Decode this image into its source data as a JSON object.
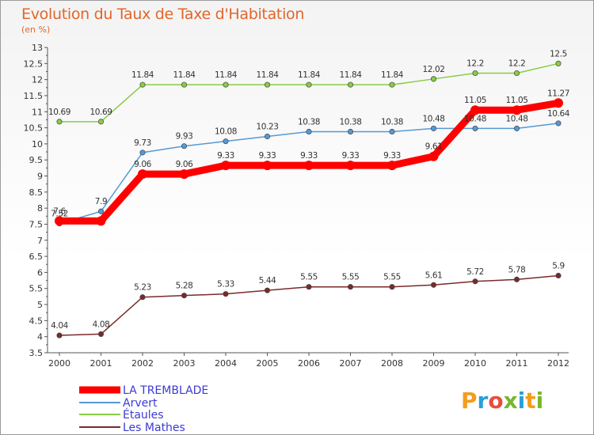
{
  "title": "Evolution du Taux de Taxe d'Habitation",
  "subtitle": "(en %)",
  "logo": {
    "text": "Proxiti",
    "colors": [
      "#f39c1e",
      "#2a9fd8",
      "#e84c3d",
      "#76b82a",
      "#2a9fd8",
      "#f39c1e",
      "#76b82a"
    ]
  },
  "chart_data": {
    "type": "line",
    "x": [
      "2000",
      "2001",
      "2002",
      "2003",
      "2004",
      "2005",
      "2006",
      "2007",
      "2008",
      "2009",
      "2010",
      "2011",
      "2012"
    ],
    "ylim": [
      3.5,
      13
    ],
    "yticks": [
      "3.5",
      "4",
      "4.5",
      "5",
      "5.5",
      "6",
      "6.5",
      "7",
      "7.5",
      "8",
      "8.5",
      "9",
      "9.5",
      "10",
      "10.5",
      "11",
      "11.5",
      "12",
      "12.5",
      "13"
    ],
    "grid": false,
    "legend_position": "bottom-left",
    "series": [
      {
        "name": "LA TREMBLADE",
        "color": "#ff0000",
        "values": [
          7.6,
          7.6,
          9.06,
          9.06,
          9.33,
          9.33,
          9.33,
          9.33,
          9.33,
          9.61,
          11.05,
          11.05,
          11.27
        ],
        "labels": [
          "7.6",
          "",
          "9.06",
          "9.06",
          "9.33",
          "9.33",
          "9.33",
          "9.33",
          "9.33",
          "9.61",
          "11.05",
          "11.05",
          "11.27"
        ]
      },
      {
        "name": "Arvert",
        "color": "#5599d6",
        "values": [
          7.52,
          7.9,
          9.73,
          9.93,
          10.08,
          10.23,
          10.38,
          10.38,
          10.38,
          10.48,
          10.48,
          10.48,
          10.64
        ],
        "labels": [
          "7.52",
          "7.9",
          "9.73",
          "9.93",
          "10.08",
          "10.23",
          "10.38",
          "10.38",
          "10.38",
          "10.48",
          "10.48",
          "10.48",
          "10.64"
        ]
      },
      {
        "name": "Étaules",
        "color": "#88cc44",
        "values": [
          10.69,
          10.69,
          11.84,
          11.84,
          11.84,
          11.84,
          11.84,
          11.84,
          11.84,
          12.02,
          12.2,
          12.2,
          12.5
        ],
        "labels": [
          "10.69",
          "10.69",
          "11.84",
          "11.84",
          "11.84",
          "11.84",
          "11.84",
          "11.84",
          "11.84",
          "12.02",
          "12.2",
          "12.2",
          "12.5"
        ]
      },
      {
        "name": "Les Mathes",
        "color": "#7a2a2a",
        "values": [
          4.04,
          4.08,
          5.23,
          5.28,
          5.33,
          5.44,
          5.55,
          5.55,
          5.55,
          5.61,
          5.72,
          5.78,
          5.9
        ],
        "labels": [
          "4.04",
          "4.08",
          "5.23",
          "5.28",
          "5.33",
          "5.44",
          "5.55",
          "5.55",
          "5.55",
          "5.61",
          "5.72",
          "5.78",
          "5.9"
        ]
      }
    ]
  }
}
